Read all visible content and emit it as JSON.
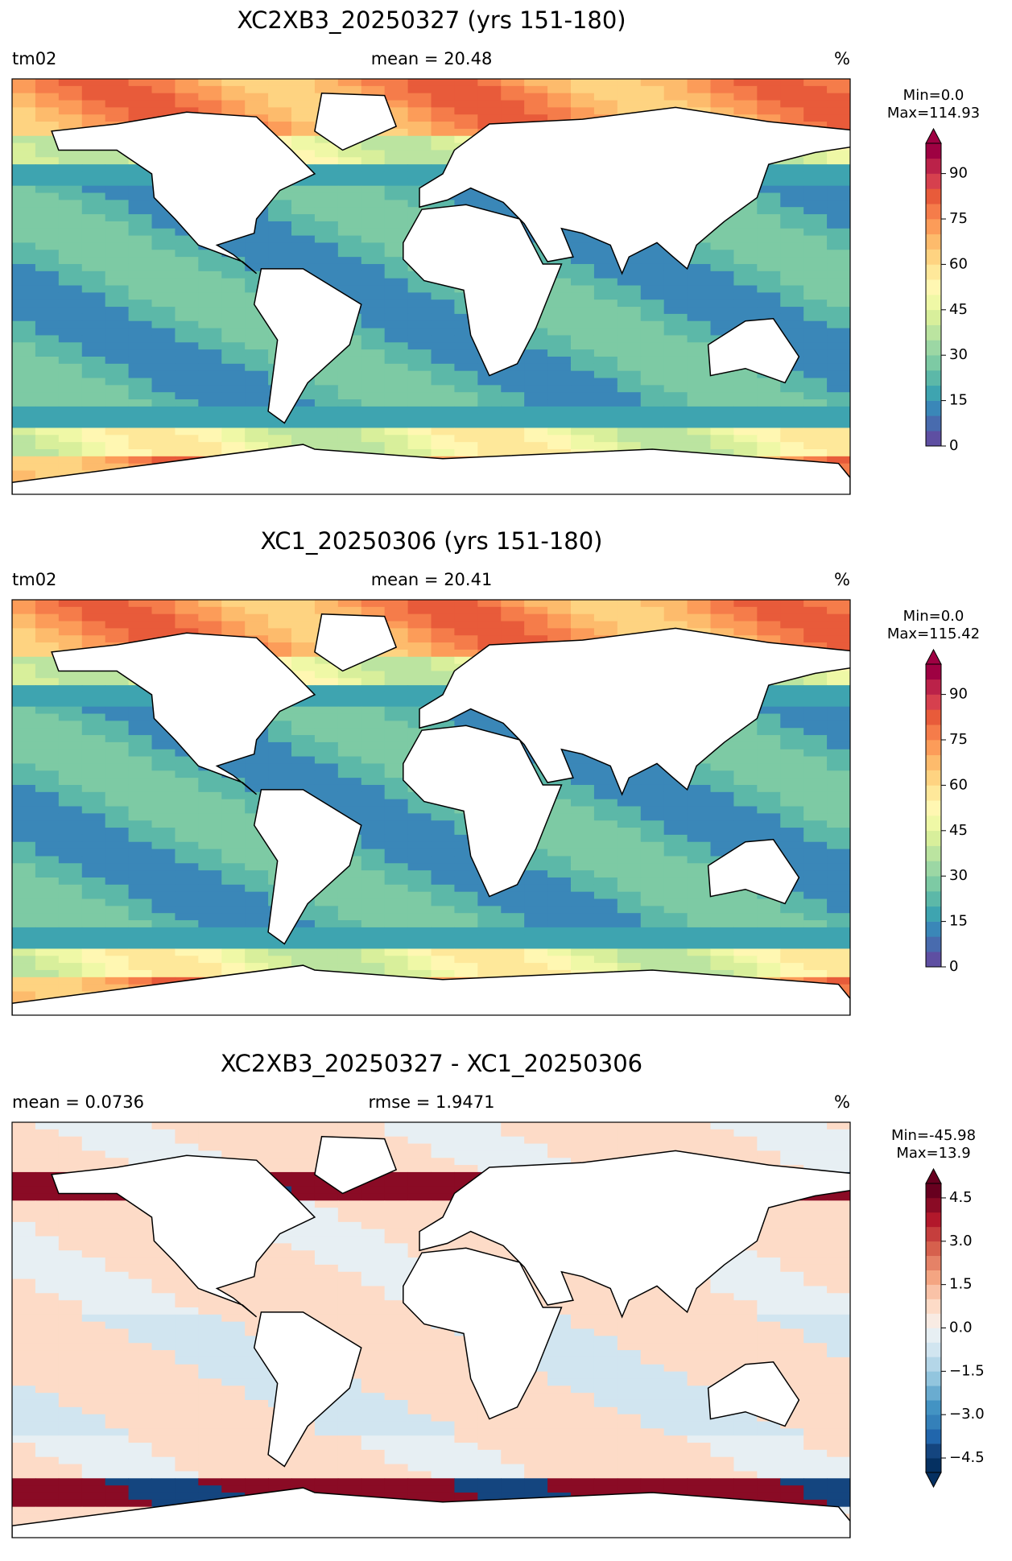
{
  "chart_data": [
    {
      "type": "map",
      "title": "XC2XB3_20250327 (yrs 151-180)",
      "left_label": "tm02",
      "center_label": "mean = 20.48",
      "unit_label": "%",
      "min_label": "Min=0.0",
      "max_label": "Max=114.93",
      "clim": [
        0,
        100
      ],
      "cticks": [
        0,
        15,
        30,
        45,
        60,
        75,
        90
      ],
      "extend": "max",
      "colors": [
        "#5e4fa2",
        "#486bae",
        "#3a87b8",
        "#3ea4b0",
        "#5cb8a8",
        "#7dcaa4",
        "#9cd7a4",
        "#bbe4a0",
        "#d8ef9b",
        "#eff8a6",
        "#fff7b2",
        "#fee89a",
        "#fed381",
        "#fdbb6c",
        "#fc9c59",
        "#f57c4a",
        "#e85b3a",
        "#d6404e",
        "#bb2249",
        "#9e0142"
      ]
    },
    {
      "type": "map",
      "title": "XC1_20250306 (yrs 151-180)",
      "left_label": "tm02",
      "center_label": "mean = 20.41",
      "unit_label": "%",
      "min_label": "Min=0.0",
      "max_label": "Max=115.42",
      "clim": [
        0,
        100
      ],
      "cticks": [
        0,
        15,
        30,
        45,
        60,
        75,
        90
      ],
      "extend": "max",
      "colors": [
        "#5e4fa2",
        "#486bae",
        "#3a87b8",
        "#3ea4b0",
        "#5cb8a8",
        "#7dcaa4",
        "#9cd7a4",
        "#bbe4a0",
        "#d8ef9b",
        "#eff8a6",
        "#fff7b2",
        "#fee89a",
        "#fed381",
        "#fdbb6c",
        "#fc9c59",
        "#f57c4a",
        "#e85b3a",
        "#d6404e",
        "#bb2249",
        "#9e0142"
      ]
    },
    {
      "type": "map",
      "title": "XC2XB3_20250327 - XC1_20250306",
      "left_label": "mean = 0.0736",
      "center_label": "rmse = 1.9471",
      "unit_label": "%",
      "min_label": "Min=-45.98",
      "max_label": "Max=13.9",
      "clim": [
        -5,
        5
      ],
      "cticks": [
        {
          "value": -4.5,
          "label": "−4.5"
        },
        {
          "value": -3,
          "label": "−3.0"
        },
        {
          "value": -1.5,
          "label": "−1.5"
        },
        {
          "value": 0,
          "label": "0.0"
        },
        1.5,
        {
          "value": 3,
          "label": "3.0"
        },
        4.5
      ],
      "extend": "both",
      "colors": [
        "#053061",
        "#14457f",
        "#2166ac",
        "#3480b9",
        "#4393c3",
        "#6aacd0",
        "#92c5de",
        "#b4d6e8",
        "#d1e5f0",
        "#e7eff3",
        "#f8ebe3",
        "#fddbc7",
        "#f9c2a7",
        "#f4a582",
        "#e58267",
        "#d6604d",
        "#c53e3d",
        "#b2182b",
        "#8a0b25",
        "#67001f"
      ]
    }
  ]
}
